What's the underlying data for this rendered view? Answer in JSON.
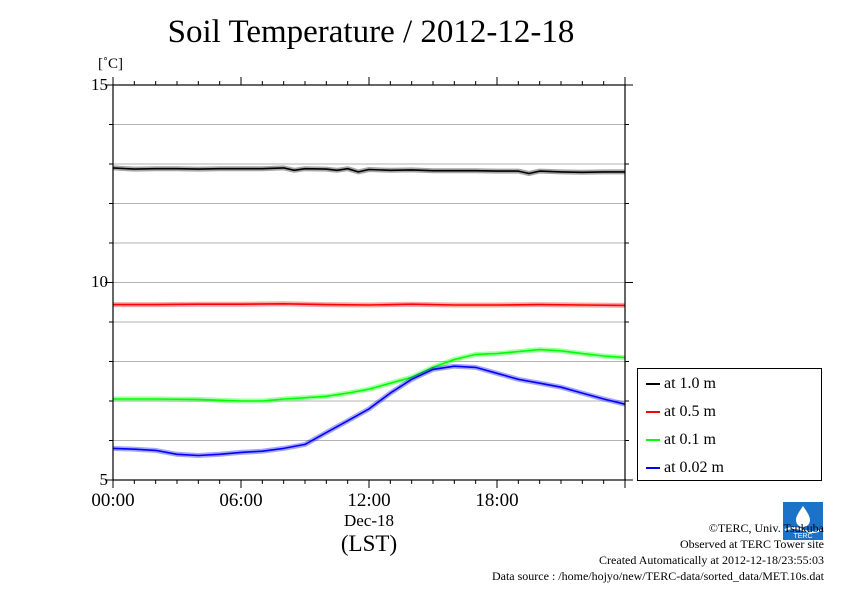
{
  "chart_data": {
    "type": "line",
    "title": "Soil Temperature / 2012-12-18",
    "ylabel": "[˚C]",
    "xlabel": "(LST)",
    "date_label": "Dec-18",
    "ylim": [
      5,
      15
    ],
    "xlim": [
      0,
      24
    ],
    "yticks": [
      "15",
      "10",
      "5"
    ],
    "yticks_values": [
      15,
      10,
      5
    ],
    "xticks": [
      "00:00",
      "06:00",
      "12:00",
      "18:00"
    ],
    "xticks_values": [
      0,
      6,
      12,
      18
    ],
    "grid": true,
    "legend_position": "right",
    "series": [
      {
        "name": "at 1.0 m",
        "color": "#000000",
        "x": [
          0,
          1,
          2,
          3,
          4,
          5,
          6,
          7,
          8,
          8.5,
          9,
          10,
          10.5,
          11,
          11.5,
          12,
          13,
          14,
          15,
          16,
          17,
          18,
          19,
          19.5,
          20,
          21,
          22,
          23,
          24
        ],
        "y": [
          12.9,
          12.87,
          12.88,
          12.88,
          12.87,
          12.88,
          12.88,
          12.88,
          12.9,
          12.84,
          12.88,
          12.87,
          12.84,
          12.88,
          12.8,
          12.86,
          12.84,
          12.85,
          12.83,
          12.83,
          12.83,
          12.82,
          12.82,
          12.76,
          12.82,
          12.8,
          12.79,
          12.8,
          12.8
        ]
      },
      {
        "name": "at 0.5 m",
        "color": "#ff0000",
        "x": [
          0,
          2,
          4,
          6,
          8,
          10,
          12,
          14,
          16,
          18,
          20,
          22,
          24
        ],
        "y": [
          9.44,
          9.44,
          9.45,
          9.45,
          9.46,
          9.44,
          9.43,
          9.45,
          9.43,
          9.43,
          9.44,
          9.43,
          9.42
        ]
      },
      {
        "name": "at 0.1 m",
        "color": "#00ff00",
        "x": [
          0,
          2,
          4,
          6,
          7,
          8,
          9,
          10,
          11,
          12,
          13,
          14,
          15,
          16,
          17,
          18,
          19,
          20,
          21,
          22,
          23,
          24
        ],
        "y": [
          7.05,
          7.05,
          7.04,
          7.0,
          7.0,
          7.05,
          7.08,
          7.12,
          7.2,
          7.3,
          7.45,
          7.6,
          7.85,
          8.05,
          8.18,
          8.2,
          8.25,
          8.3,
          8.27,
          8.2,
          8.14,
          8.1
        ]
      },
      {
        "name": "at 0.02 m",
        "color": "#0000ff",
        "x": [
          0,
          1,
          2,
          3,
          4,
          5,
          6,
          7,
          8,
          9,
          10,
          11,
          12,
          13,
          14,
          15,
          16,
          17,
          18,
          19,
          20,
          21,
          22,
          23,
          24
        ],
        "y": [
          5.8,
          5.78,
          5.75,
          5.65,
          5.62,
          5.65,
          5.7,
          5.73,
          5.8,
          5.9,
          6.2,
          6.5,
          6.8,
          7.2,
          7.55,
          7.8,
          7.88,
          7.85,
          7.7,
          7.55,
          7.45,
          7.35,
          7.2,
          7.05,
          6.92
        ]
      }
    ]
  },
  "credits": {
    "copyright": "©TERC, Univ. Tsukuba",
    "site": "Observed at TERC Tower site",
    "created": "Created Automatically at 2012-12-18/23:55:03",
    "source": "Data source : /home/hojyo/new/TERC-data/sorted_data/MET.10s.dat"
  },
  "logo": {
    "icon": "terc-logo",
    "text": "TERC",
    "color": "#1a73c8"
  }
}
